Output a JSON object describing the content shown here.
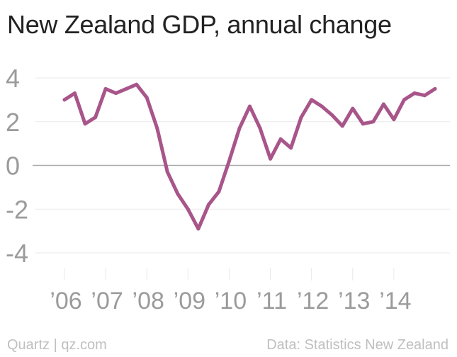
{
  "title": "New Zealand GDP, annual change",
  "footer": {
    "source_brand": "Quartz | qz.com",
    "source_data": "Data: Statistics New Zealand"
  },
  "colors": {
    "line": "#a8558a",
    "grid": "#e9e9e9",
    "zero": "#a9a9a9",
    "tick_text": "#9b9b9b"
  },
  "chart_data": {
    "type": "line",
    "title": "New Zealand GDP, annual change",
    "xlabel": "",
    "ylabel": "",
    "ylim": [
      -5,
      5
    ],
    "yticks": [
      4,
      2,
      0,
      -2,
      -4
    ],
    "ytick_labels": [
      "4",
      "2",
      "0",
      "-2",
      "-4"
    ],
    "grid": true,
    "legend": "none",
    "xtick_labels": [
      {
        "label": "’06",
        "x": 2006
      },
      {
        "label": "’07",
        "x": 2007
      },
      {
        "label": "’08",
        "x": 2008
      },
      {
        "label": "’09",
        "x": 2009
      },
      {
        "label": "’10",
        "x": 2010
      },
      {
        "label": "’11",
        "x": 2011
      },
      {
        "label": "’12",
        "x": 2012
      },
      {
        "label": "’13",
        "x": 2013
      },
      {
        "label": "’14",
        "x": 2014
      }
    ],
    "xlim": [
      2005.77,
      2014.93
    ],
    "series": [
      {
        "values": [
          {
            "x": 2006.0,
            "y": 3.0
          },
          {
            "x": 2006.25,
            "y": 3.3
          },
          {
            "x": 2006.5,
            "y": 1.9
          },
          {
            "x": 2006.75,
            "y": 2.2
          },
          {
            "x": 2007.0,
            "y": 3.5
          },
          {
            "x": 2007.25,
            "y": 3.3
          },
          {
            "x": 2007.5,
            "y": 3.5
          },
          {
            "x": 2007.75,
            "y": 3.7
          },
          {
            "x": 2008.0,
            "y": 3.1
          },
          {
            "x": 2008.25,
            "y": 1.7
          },
          {
            "x": 2008.5,
            "y": -0.3
          },
          {
            "x": 2008.75,
            "y": -1.3
          },
          {
            "x": 2009.0,
            "y": -2.0
          },
          {
            "x": 2009.25,
            "y": -2.9
          },
          {
            "x": 2009.5,
            "y": -1.8
          },
          {
            "x": 2009.75,
            "y": -1.2
          },
          {
            "x": 2010.0,
            "y": 0.2
          },
          {
            "x": 2010.25,
            "y": 1.7
          },
          {
            "x": 2010.5,
            "y": 2.7
          },
          {
            "x": 2010.75,
            "y": 1.7
          },
          {
            "x": 2011.0,
            "y": 0.3
          },
          {
            "x": 2011.25,
            "y": 1.2
          },
          {
            "x": 2011.5,
            "y": 0.8
          },
          {
            "x": 2011.75,
            "y": 2.2
          },
          {
            "x": 2012.0,
            "y": 3.0
          },
          {
            "x": 2012.25,
            "y": 2.7
          },
          {
            "x": 2012.5,
            "y": 2.3
          },
          {
            "x": 2012.75,
            "y": 1.8
          },
          {
            "x": 2013.0,
            "y": 2.6
          },
          {
            "x": 2013.25,
            "y": 1.9
          },
          {
            "x": 2013.5,
            "y": 2.0
          },
          {
            "x": 2013.75,
            "y": 2.8
          },
          {
            "x": 2014.0,
            "y": 2.1
          },
          {
            "x": 2014.25,
            "y": 3.0
          },
          {
            "x": 2014.5,
            "y": 3.3
          },
          {
            "x": 2014.75,
            "y": 3.2
          },
          {
            "x": 2015.0,
            "y": 3.5
          }
        ]
      }
    ]
  }
}
